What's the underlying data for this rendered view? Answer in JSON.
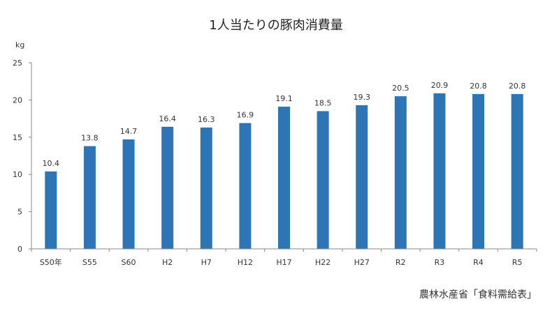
{
  "chart_data": {
    "type": "bar",
    "title": "1人当たりの豚肉消費量",
    "y_unit": "kg",
    "source": "農林水産省「食料需給表」",
    "categories": [
      "S50年",
      "S55",
      "S60",
      "H2",
      "H7",
      "H12",
      "H17",
      "H22",
      "H27",
      "R2",
      "R3",
      "R4",
      "R5"
    ],
    "values": [
      10.4,
      13.8,
      14.7,
      16.4,
      16.3,
      16.9,
      19.1,
      18.5,
      19.3,
      20.5,
      20.9,
      20.8,
      20.8
    ],
    "value_labels": [
      "10.4",
      "13.8",
      "14.7",
      "16.4",
      "16.3",
      "16.9",
      "19.1",
      "18.5",
      "19.3",
      "20.5",
      "20.9",
      "20.8",
      "20.8"
    ],
    "y_ticks": [
      "0",
      "5",
      "10",
      "15",
      "20",
      "25"
    ],
    "ylim": [
      0,
      25
    ],
    "grid": false,
    "legend": "none",
    "bar_color": "#2e75b6",
    "axis_color": "#888888"
  }
}
